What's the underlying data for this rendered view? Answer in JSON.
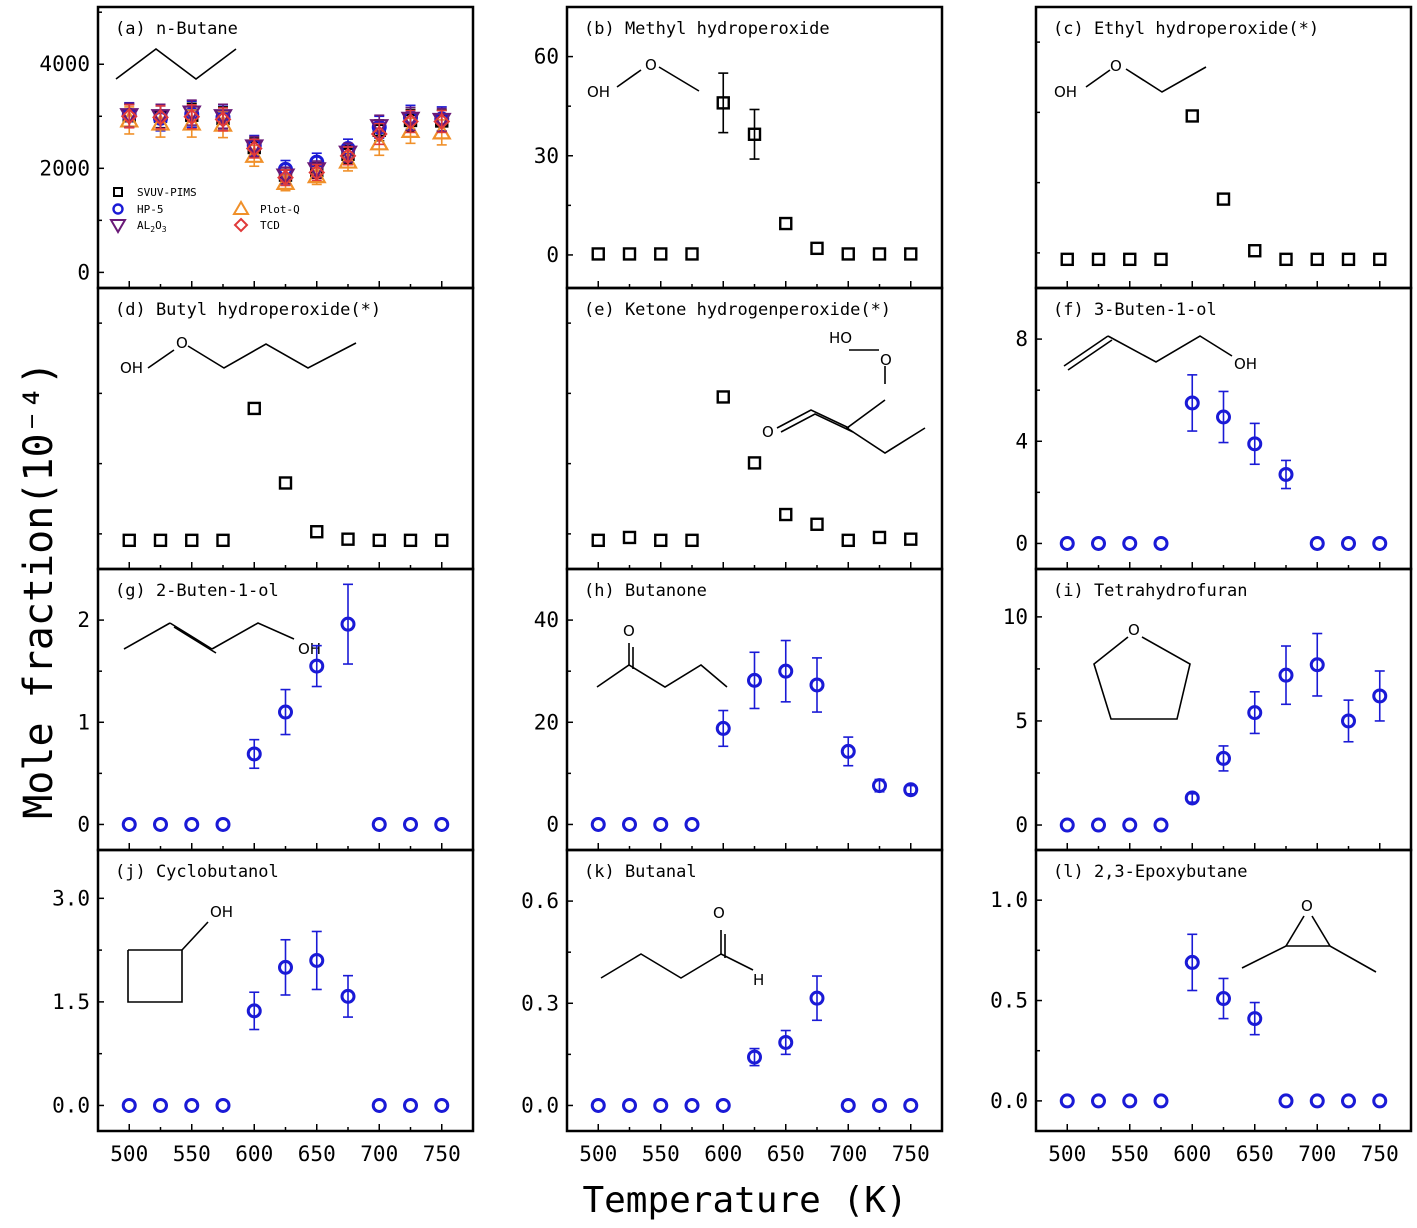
{
  "figure": {
    "ylabel": "Mole fraction(10⁻⁴)",
    "xlabel": "Temperature (K)",
    "colors": {
      "SVUV-PIMS": "#000000",
      "HP-5": "#1a1ad6",
      "AL2O3": "#6a1a78",
      "Plot-Q": "#f0902a",
      "TCD": "#e03a3a"
    }
  },
  "legend": {
    "entries": [
      "SVUV-PIMS",
      "HP-5",
      "Plot-Q",
      "AL2O3",
      "TCD"
    ],
    "al2o3_label": {
      "base": "AL",
      "sub": "2",
      "rest": "O",
      "sub2": "3"
    }
  },
  "chart_data": [
    {
      "type": "scatter",
      "title": "(a) n-Butane",
      "xlim": [
        475,
        775
      ],
      "ylim": [
        -300,
        5100
      ],
      "yticks": [
        0,
        2000,
        4000
      ],
      "xticks": [
        500,
        550,
        600,
        650,
        700,
        750
      ],
      "molecule": "n-butane",
      "series": [
        {
          "name": "SVUV-PIMS",
          "marker": "square",
          "x": [
            500,
            525,
            550,
            575,
            600,
            625,
            650,
            675,
            700,
            725,
            750
          ],
          "y": [
            3010,
            3000,
            3020,
            2960,
            2400,
            1870,
            1960,
            2270,
            2730,
            2920,
            2910
          ],
          "err": [
            220,
            220,
            230,
            220,
            180,
            150,
            150,
            170,
            200,
            210,
            210
          ]
        },
        {
          "name": "HP-5",
          "marker": "circle",
          "x": [
            500,
            525,
            550,
            575,
            600,
            625,
            650,
            675,
            700,
            725,
            750
          ],
          "y": [
            3020,
            2960,
            3040,
            2980,
            2440,
            1980,
            2120,
            2380,
            2790,
            2980,
            2950
          ],
          "err": [
            240,
            240,
            250,
            240,
            190,
            170,
            170,
            180,
            210,
            230,
            230
          ]
        },
        {
          "name": "Plot-Q",
          "marker": "triangle-up",
          "x": [
            500,
            525,
            550,
            575,
            600,
            625,
            650,
            675,
            700,
            725,
            750
          ],
          "y": [
            2920,
            2860,
            2860,
            2840,
            2240,
            1720,
            1850,
            2130,
            2480,
            2720,
            2690
          ],
          "err": [
            260,
            260,
            260,
            250,
            200,
            150,
            160,
            180,
            230,
            240,
            240
          ]
        },
        {
          "name": "AL2O3",
          "marker": "triangle-down",
          "x": [
            500,
            525,
            550,
            575,
            600,
            625,
            650,
            675,
            700,
            725,
            750
          ],
          "y": [
            3020,
            3000,
            3070,
            3000,
            2420,
            1860,
            1980,
            2300,
            2810,
            2950,
            2930
          ],
          "err": [
            230,
            230,
            240,
            230,
            190,
            160,
            160,
            180,
            210,
            220,
            220
          ]
        },
        {
          "name": "TCD",
          "marker": "diamond",
          "x": [
            500,
            525,
            550,
            575,
            600,
            625,
            650,
            675,
            700,
            725,
            750
          ],
          "y": [
            3000,
            2980,
            2990,
            2940,
            2380,
            1820,
            1920,
            2240,
            2660,
            2900,
            2900
          ],
          "err": [
            220,
            220,
            230,
            220,
            180,
            150,
            150,
            170,
            200,
            210,
            210
          ]
        }
      ]
    },
    {
      "type": "scatter",
      "title": "(b) Methyl hydroperoxide",
      "xlim": [
        475,
        775
      ],
      "ylim": [
        -10,
        75
      ],
      "yticks": [
        0,
        30,
        60
      ],
      "xticks": [
        500,
        525,
        550,
        575,
        600,
        625,
        650,
        675,
        700,
        725,
        750
      ],
      "molecule": "methyl-hydroperoxide",
      "series": [
        {
          "name": "SVUV-PIMS",
          "marker": "square",
          "x": [
            500,
            525,
            550,
            575,
            600,
            625,
            650,
            675,
            700,
            725,
            750
          ],
          "y": [
            0.3,
            0.3,
            0.3,
            0.3,
            46,
            36.5,
            9.5,
            2,
            0.3,
            0.3,
            0.3
          ],
          "err": [
            0,
            0,
            0,
            0,
            9,
            7.5,
            0,
            0,
            0,
            0,
            0
          ]
        }
      ]
    },
    {
      "type": "scatter",
      "title": "(c) Ethyl hydroperoxide(*)",
      "xlim": [
        475,
        775
      ],
      "ylim": [
        -0.5,
        4.4
      ],
      "yticks": [],
      "xticks": [
        500,
        525,
        550,
        575,
        600,
        625,
        650,
        675,
        700,
        725,
        750
      ],
      "molecule": "ethyl-hydroperoxide",
      "series": [
        {
          "name": "SVUV-PIMS",
          "marker": "square",
          "x": [
            500,
            525,
            550,
            575,
            600,
            625,
            650,
            675,
            700,
            725,
            750
          ],
          "y": [
            0,
            0,
            0,
            0,
            2.5,
            1.05,
            0.15,
            0,
            0,
            0,
            0
          ],
          "err": [
            0,
            0,
            0,
            0,
            0,
            0,
            0,
            0,
            0,
            0,
            0
          ]
        }
      ]
    },
    {
      "type": "scatter",
      "title": "(d) Butyl hydroperoxide(*)",
      "xlim": [
        475,
        775
      ],
      "ylim": [
        -0.5,
        4.4
      ],
      "yticks": [],
      "xticks": [
        500,
        525,
        550,
        575,
        600,
        625,
        650,
        675,
        700,
        725,
        750
      ],
      "molecule": "butyl-hydroperoxide",
      "series": [
        {
          "name": "SVUV-PIMS",
          "marker": "square",
          "x": [
            500,
            525,
            550,
            575,
            600,
            625,
            650,
            675,
            700,
            725,
            750
          ],
          "y": [
            0,
            0,
            0,
            0,
            2.3,
            1.0,
            0.15,
            0.02,
            0,
            0,
            0
          ],
          "err": [
            0,
            0,
            0,
            0,
            0,
            0,
            0,
            0,
            0,
            0,
            0
          ]
        }
      ]
    },
    {
      "type": "scatter",
      "title": "(e) Ketone hydrogenperoxide(*)",
      "xlim": [
        475,
        775
      ],
      "ylim": [
        -0.5,
        4.4
      ],
      "yticks": [],
      "xticks": [
        500,
        525,
        550,
        575,
        600,
        625,
        650,
        675,
        700,
        725,
        750
      ],
      "molecule": "ketone-hydroperoxide",
      "series": [
        {
          "name": "SVUV-PIMS",
          "marker": "square",
          "x": [
            500,
            525,
            550,
            575,
            600,
            625,
            650,
            675,
            700,
            725,
            750
          ],
          "y": [
            0,
            0.05,
            0,
            0,
            2.5,
            1.35,
            0.45,
            0.28,
            0,
            0.05,
            0.02
          ],
          "err": [
            0,
            0,
            0,
            0,
            0,
            0,
            0,
            0,
            0,
            0,
            0
          ]
        }
      ]
    },
    {
      "type": "scatter",
      "title": "(f) 3-Buten-1-ol",
      "xlim": [
        475,
        775
      ],
      "ylim": [
        -1,
        10
      ],
      "yticks": [
        0,
        4,
        8
      ],
      "xticks": [
        500,
        525,
        550,
        575,
        600,
        625,
        650,
        675,
        700,
        725,
        750
      ],
      "molecule": "3-buten-1-ol",
      "series": [
        {
          "name": "HP-5",
          "marker": "circle",
          "x": [
            500,
            525,
            550,
            575,
            600,
            625,
            650,
            675,
            700,
            725,
            750
          ],
          "y": [
            0,
            0,
            0,
            0,
            5.5,
            4.95,
            3.9,
            2.7,
            0,
            0,
            0
          ],
          "err": [
            0,
            0,
            0,
            0,
            1.1,
            1.0,
            0.8,
            0.55,
            0,
            0,
            0
          ]
        }
      ]
    },
    {
      "type": "scatter",
      "title": "(g) 2-Buten-1-ol",
      "xlim": [
        475,
        775
      ],
      "ylim": [
        -0.25,
        2.5
      ],
      "yticks": [
        0,
        1,
        2
      ],
      "xticks": [
        500,
        525,
        550,
        575,
        600,
        625,
        650,
        675,
        700,
        725,
        750
      ],
      "molecule": "2-buten-1-ol",
      "series": [
        {
          "name": "HP-5",
          "marker": "circle",
          "x": [
            500,
            525,
            550,
            575,
            600,
            625,
            650,
            675,
            700,
            725,
            750
          ],
          "y": [
            0,
            0,
            0,
            0,
            0.69,
            1.1,
            1.55,
            1.96,
            0,
            0,
            0
          ],
          "err": [
            0,
            0,
            0,
            0,
            0.14,
            0.22,
            0.2,
            0.39,
            0,
            0,
            0
          ]
        }
      ]
    },
    {
      "type": "scatter",
      "title": "(h) Butanone",
      "xlim": [
        475,
        775
      ],
      "ylim": [
        -5,
        50
      ],
      "yticks": [
        0,
        20,
        40
      ],
      "xticks": [
        500,
        525,
        550,
        575,
        600,
        625,
        650,
        675,
        700,
        725,
        750
      ],
      "molecule": "butanone",
      "series": [
        {
          "name": "HP-5",
          "marker": "circle",
          "x": [
            500,
            525,
            550,
            575,
            600,
            625,
            650,
            675,
            700,
            725,
            750
          ],
          "y": [
            0,
            0,
            0,
            0,
            18.8,
            28.2,
            30,
            27.3,
            14.3,
            7.6,
            6.8
          ],
          "err": [
            0,
            0,
            0,
            0,
            3.5,
            5.5,
            6,
            5.3,
            2.8,
            1.2,
            0.8
          ]
        }
      ]
    },
    {
      "type": "scatter",
      "title": "(i) Tetrahydrofuran",
      "xlim": [
        475,
        775
      ],
      "ylim": [
        -1.2,
        12.3
      ],
      "yticks": [
        0,
        5,
        10
      ],
      "xticks": [
        500,
        525,
        550,
        575,
        600,
        625,
        650,
        675,
        700,
        725,
        750
      ],
      "molecule": "tetrahydrofuran",
      "series": [
        {
          "name": "HP-5",
          "marker": "circle",
          "x": [
            500,
            525,
            550,
            575,
            600,
            625,
            650,
            675,
            700,
            725,
            750
          ],
          "y": [
            0,
            0,
            0,
            0,
            1.3,
            3.2,
            5.4,
            7.2,
            7.7,
            5.0,
            6.2
          ],
          "err": [
            0,
            0,
            0,
            0,
            0.2,
            0.6,
            1.0,
            1.4,
            1.5,
            1.0,
            1.2
          ]
        }
      ]
    },
    {
      "type": "scatter",
      "title": "(j) Cyclobutanol",
      "xlim": [
        475,
        775
      ],
      "ylim": [
        -0.37,
        3.7
      ],
      "yticks": [
        0.0,
        1.5,
        3.0
      ],
      "ytick_labels": [
        "0.0",
        "1.5",
        "3.0"
      ],
      "xticks": [
        500,
        525,
        550,
        575,
        600,
        625,
        650,
        675,
        700,
        725,
        750
      ],
      "xtick_labels": [
        "500",
        "550",
        "600",
        "650",
        "700",
        "750"
      ],
      "molecule": "cyclobutanol",
      "series": [
        {
          "name": "HP-5",
          "marker": "circle",
          "x": [
            500,
            525,
            550,
            575,
            600,
            625,
            650,
            675,
            700,
            725,
            750
          ],
          "y": [
            0,
            0,
            0,
            0,
            1.37,
            2.0,
            2.1,
            1.58,
            0,
            0,
            0
          ],
          "err": [
            0,
            0,
            0,
            0,
            0.27,
            0.4,
            0.42,
            0.3,
            0,
            0,
            0
          ]
        }
      ]
    },
    {
      "type": "scatter",
      "title": "(k) Butanal",
      "xlim": [
        475,
        775
      ],
      "ylim": [
        -0.075,
        0.75
      ],
      "yticks": [
        0.0,
        0.3,
        0.6
      ],
      "ytick_labels": [
        "0.0",
        "0.3",
        "0.6"
      ],
      "xticks": [
        500,
        525,
        550,
        575,
        600,
        625,
        650,
        675,
        700,
        725,
        750
      ],
      "xtick_labels": [
        "500",
        "550",
        "600",
        "650",
        "700",
        "750"
      ],
      "molecule": "butanal",
      "series": [
        {
          "name": "HP-5",
          "marker": "circle",
          "x": [
            500,
            525,
            550,
            575,
            600,
            625,
            650,
            675,
            700,
            725,
            750
          ],
          "y": [
            0,
            0,
            0,
            0,
            0,
            0.142,
            0.185,
            0.315,
            0,
            0,
            0
          ],
          "err": [
            0,
            0,
            0,
            0,
            0,
            0.025,
            0.035,
            0.065,
            0,
            0,
            0
          ]
        }
      ]
    },
    {
      "type": "scatter",
      "title": "(l) 2,3-Epoxybutane",
      "xlim": [
        475,
        775
      ],
      "ylim": [
        -0.15,
        1.25
      ],
      "yticks": [
        0.0,
        0.5,
        1.0
      ],
      "ytick_labels": [
        "0.0",
        "0.5",
        "1.0"
      ],
      "xticks": [
        500,
        525,
        550,
        575,
        600,
        625,
        650,
        675,
        700,
        725,
        750
      ],
      "xtick_labels": [
        "500",
        "550",
        "600",
        "650",
        "700",
        "750"
      ],
      "molecule": "2,3-epoxybutane",
      "series": [
        {
          "name": "HP-5",
          "marker": "circle",
          "x": [
            500,
            525,
            550,
            575,
            600,
            625,
            650,
            675,
            700,
            725,
            750
          ],
          "y": [
            0,
            0,
            0,
            0,
            0.69,
            0.51,
            0.41,
            0,
            0,
            0,
            0
          ],
          "err": [
            0,
            0,
            0,
            0,
            0.14,
            0.1,
            0.08,
            0,
            0,
            0,
            0
          ]
        }
      ]
    }
  ]
}
